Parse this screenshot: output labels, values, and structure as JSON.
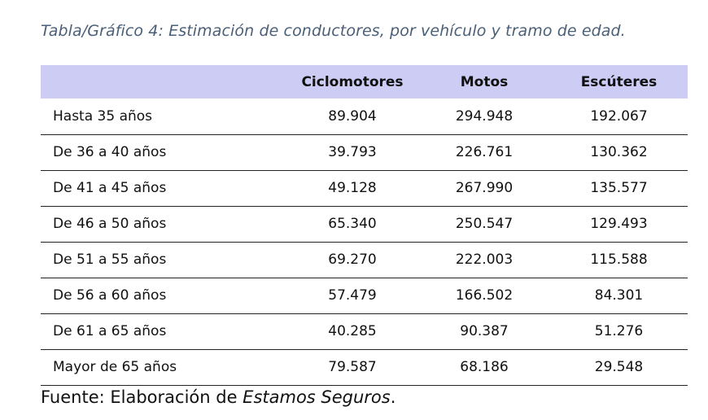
{
  "caption": "Tabla/Gráfico 4: Estimación de conductores, por vehículo y tramo de edad.",
  "table": {
    "columns": [
      "",
      "Ciclomotores",
      "Motos",
      "Escúteres"
    ],
    "rows": [
      {
        "label": "Hasta 35 años",
        "values": [
          "89.904",
          "294.948",
          "192.067"
        ]
      },
      {
        "label": "De 36 a 40 años",
        "values": [
          "39.793",
          "226.761",
          "130.362"
        ]
      },
      {
        "label": "De 41 a 45 años",
        "values": [
          "49.128",
          "267.990",
          "135.577"
        ]
      },
      {
        "label": "De 46 a 50 años",
        "values": [
          "65.340",
          "250.547",
          "129.493"
        ]
      },
      {
        "label": "De 51 a 55 años",
        "values": [
          "69.270",
          "222.003",
          "115.588"
        ]
      },
      {
        "label": "De 56 a 60 años",
        "values": [
          "57.479",
          "166.502",
          "84.301"
        ]
      },
      {
        "label": "De 61 a 65 años",
        "values": [
          "40.285",
          "90.387",
          "51.276"
        ]
      },
      {
        "label": "Mayor de 65 años",
        "values": [
          "79.587",
          "68.186",
          "29.548"
        ]
      }
    ],
    "header_bg": "#ccccf5"
  },
  "source": {
    "prefix": "Fuente: Elaboración de ",
    "name": "Estamos Seguros",
    "suffix": "."
  },
  "colors": {
    "caption": "#4a5f78",
    "text": "#111111"
  }
}
